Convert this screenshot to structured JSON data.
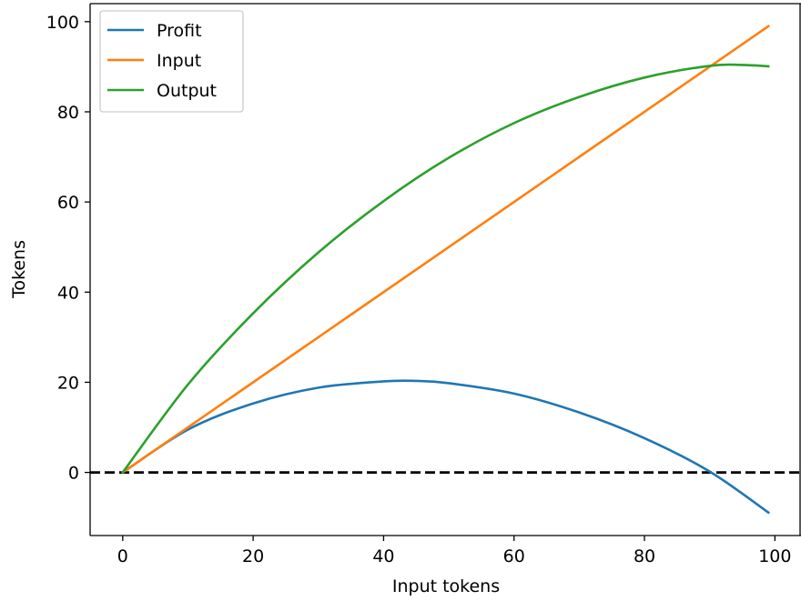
{
  "chart_data": {
    "type": "line",
    "xlabel": "Input tokens",
    "ylabel": "Tokens",
    "xlim": [
      -5,
      104
    ],
    "ylim": [
      -14,
      104
    ],
    "xticks": [
      0,
      20,
      40,
      60,
      80,
      100
    ],
    "yticks": [
      0,
      20,
      40,
      60,
      80,
      100
    ],
    "grid": false,
    "legend_position": "top-left",
    "reference_line": {
      "y": 0,
      "style": "dashed",
      "color": "#000000"
    },
    "series": [
      {
        "name": "Profit",
        "color": "#1f77b4",
        "x": [
          0,
          10,
          20,
          30,
          40,
          45,
          50,
          60,
          70,
          80,
          90,
          99
        ],
        "y": [
          0,
          9.5,
          15.3,
          18.8,
          20.2,
          20.3,
          19.8,
          17.5,
          13.3,
          7.6,
          0.2,
          -8.9
        ]
      },
      {
        "name": "Input",
        "color": "#ff7f0e",
        "x": [
          0,
          99
        ],
        "y": [
          0,
          99
        ]
      },
      {
        "name": "Output",
        "color": "#2ca02c",
        "x": [
          0,
          10,
          20,
          30,
          40,
          50,
          60,
          70,
          80,
          90,
          95,
          99
        ],
        "y": [
          0,
          19.5,
          35.3,
          48.8,
          60.2,
          69.8,
          77.5,
          83.3,
          87.6,
          90.2,
          90.4,
          90.1
        ]
      }
    ]
  }
}
